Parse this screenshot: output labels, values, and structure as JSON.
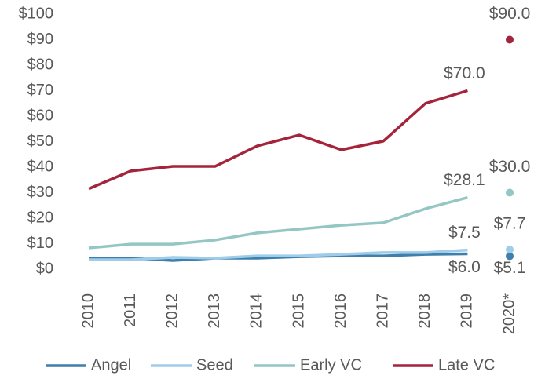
{
  "chart_data": {
    "type": "line",
    "categories": [
      "2010",
      "2011",
      "2012",
      "2013",
      "2014",
      "2015",
      "2016",
      "2017",
      "2018",
      "2019",
      "2020*"
    ],
    "series": [
      {
        "name": "Angel",
        "color": "#3e7fab",
        "values": [
          4.3,
          4.3,
          3.4,
          4.3,
          4.3,
          4.9,
          5.2,
          5.2,
          5.8,
          6.0,
          5.1
        ],
        "value_labels": [
          null,
          null,
          null,
          null,
          null,
          null,
          null,
          null,
          null,
          "$6.0",
          "$5.1"
        ]
      },
      {
        "name": "Seed",
        "color": "#9fcce9",
        "values": [
          3.7,
          3.7,
          4.6,
          4.3,
          5.2,
          5.2,
          5.8,
          6.5,
          6.5,
          7.5,
          7.7
        ],
        "value_labels": [
          null,
          null,
          null,
          null,
          null,
          null,
          null,
          null,
          null,
          "$7.5",
          "$7.7"
        ]
      },
      {
        "name": "Early VC",
        "color": "#94c6c3",
        "values": [
          8.3,
          9.8,
          9.8,
          11.4,
          14.2,
          15.7,
          17.2,
          18.2,
          23.7,
          28.1,
          30.0
        ],
        "value_labels": [
          null,
          null,
          null,
          null,
          null,
          null,
          null,
          null,
          null,
          "$28.1",
          "$30.0"
        ]
      },
      {
        "name": "Late VC",
        "color": "#a4243b",
        "values": [
          31.5,
          38.5,
          40.3,
          40.3,
          48.3,
          52.6,
          46.8,
          50.2,
          65.0,
          70.0,
          90.0
        ],
        "value_labels": [
          null,
          null,
          null,
          null,
          null,
          null,
          null,
          null,
          null,
          "$70.0",
          "$90.0"
        ]
      }
    ],
    "ylim": [
      0,
      100
    ],
    "yticks": [
      {
        "value": 0,
        "label": "$0"
      },
      {
        "value": 10,
        "label": "$10"
      },
      {
        "value": 20,
        "label": "$20"
      },
      {
        "value": 30,
        "label": "$30"
      },
      {
        "value": 40,
        "label": "$40"
      },
      {
        "value": 50,
        "label": "$50"
      },
      {
        "value": 60,
        "label": "$60"
      },
      {
        "value": 70,
        "label": "$70"
      },
      {
        "value": 80,
        "label": "$80"
      },
      {
        "value": 90,
        "label": "$90"
      },
      {
        "value": 100,
        "label": "$100"
      }
    ],
    "grid": false,
    "legend": "bottom"
  }
}
